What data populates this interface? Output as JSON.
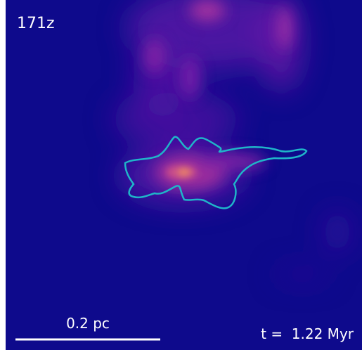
{
  "panel_label": "171z",
  "scale_bar": {
    "label": "0.2 pc"
  },
  "time_label": "t =  1.22 Myr"
}
